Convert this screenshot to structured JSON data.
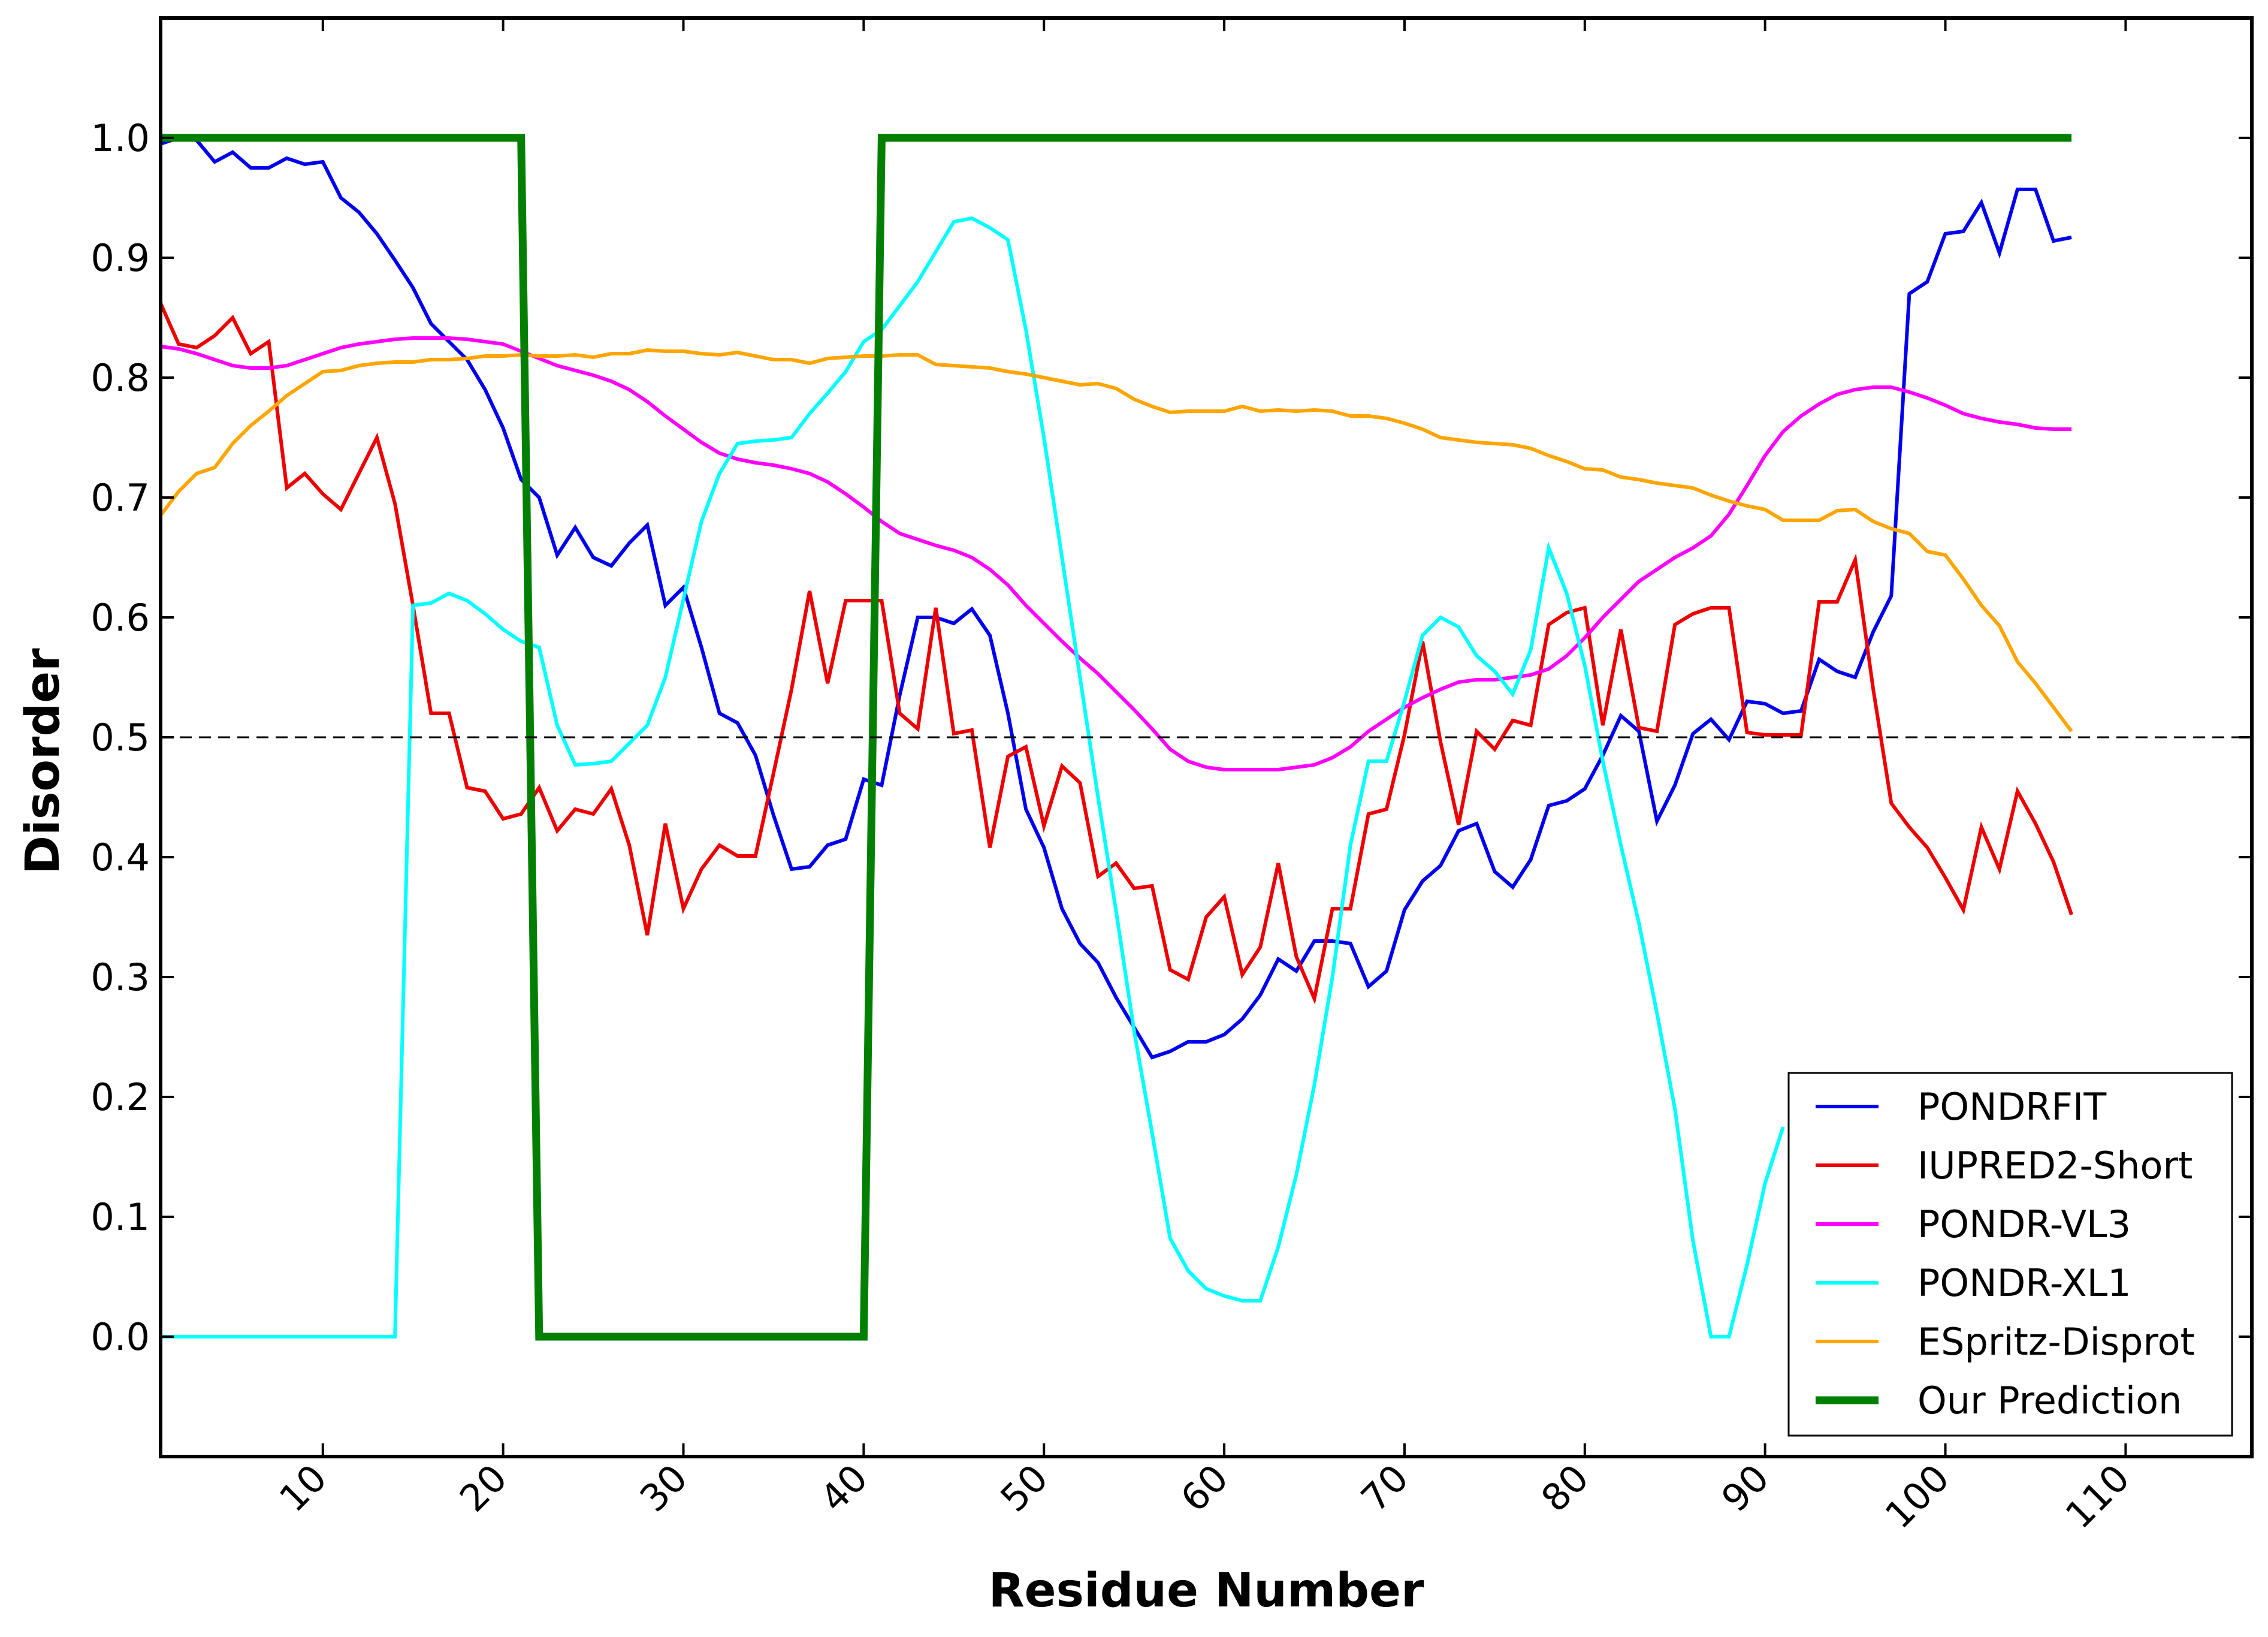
{
  "chart_data": {
    "type": "line",
    "title": "",
    "xlabel": "Residue Number",
    "ylabel": "Disorder",
    "xlim": [
      1,
      117
    ],
    "ylim": [
      -0.1,
      1.1
    ],
    "xticks": [
      10,
      20,
      30,
      40,
      50,
      60,
      70,
      80,
      90,
      100,
      110
    ],
    "yticks": [
      0.0,
      0.1,
      0.2,
      0.3,
      0.4,
      0.5,
      0.6,
      0.7,
      0.8,
      0.9,
      1.0
    ],
    "ytick_labels": [
      "0.0",
      "0.1",
      "0.2",
      "0.3",
      "0.4",
      "0.5",
      "0.6",
      "0.7",
      "0.8",
      "0.9",
      "1.0"
    ],
    "xtick_labels": [
      "10",
      "20",
      "30",
      "40",
      "50",
      "60",
      "70",
      "80",
      "90",
      "100",
      "110"
    ],
    "grid": false,
    "legend_position": "bottom-right",
    "reference_line": {
      "y": 0.5,
      "style": "dashed",
      "color": "#000000"
    },
    "series": [
      {
        "name": "PONDRFIT",
        "color": "#0000ee",
        "width": "thin",
        "x": [
          1,
          2,
          3,
          4,
          5,
          6,
          7,
          8,
          9,
          10,
          11,
          12,
          13,
          14,
          15,
          16,
          17,
          18,
          19,
          20,
          21,
          22,
          23,
          24,
          25,
          26,
          27,
          28,
          29,
          30,
          31,
          32,
          33,
          34,
          35,
          36,
          37,
          38,
          39,
          40,
          41,
          42,
          43,
          44,
          45,
          46,
          47,
          48,
          49,
          50,
          51,
          52,
          53,
          54,
          55,
          56,
          57,
          58,
          59,
          60,
          61,
          62,
          63,
          64,
          65,
          66,
          67,
          68,
          69,
          70,
          71,
          72,
          73,
          74,
          75,
          76,
          77,
          78,
          79,
          80,
          81,
          82,
          83,
          84,
          85,
          86,
          87,
          88,
          89,
          90,
          91,
          92,
          93,
          94,
          95,
          96,
          97,
          98,
          99,
          100,
          101,
          102,
          103,
          104,
          105,
          106,
          107
        ],
        "values": [
          0.995,
          1.0,
          0.998,
          0.98,
          0.988,
          0.975,
          0.975,
          0.983,
          0.978,
          0.98,
          0.95,
          0.938,
          0.92,
          0.898,
          0.875,
          0.845,
          0.83,
          0.815,
          0.79,
          0.758,
          0.715,
          0.7,
          0.652,
          0.675,
          0.65,
          0.643,
          0.662,
          0.677,
          0.61,
          0.625,
          0.575,
          0.52,
          0.512,
          0.485,
          0.435,
          0.39,
          0.392,
          0.41,
          0.415,
          0.465,
          0.46,
          0.535,
          0.6,
          0.6,
          0.595,
          0.607,
          0.585,
          0.52,
          0.44,
          0.408,
          0.357,
          0.328,
          0.312,
          0.283,
          0.258,
          0.233,
          0.238,
          0.246,
          0.246,
          0.252,
          0.265,
          0.285,
          0.315,
          0.305,
          0.33,
          0.33,
          0.328,
          0.292,
          0.305,
          0.356,
          0.38,
          0.393,
          0.422,
          0.428,
          0.388,
          0.375,
          0.398,
          0.443,
          0.447,
          0.457,
          0.485,
          0.518,
          0.505,
          0.43,
          0.46,
          0.503,
          0.515,
          0.498,
          0.53,
          0.528,
          0.52,
          0.522,
          0.565,
          0.555,
          0.55,
          0.588,
          0.618,
          0.87,
          0.88,
          0.92,
          0.922,
          0.946,
          0.904,
          0.957,
          0.957,
          0.914,
          0.917
        ]
      },
      {
        "name": "IUPRED2-Short",
        "color": "#ee0000",
        "width": "thin",
        "x": [
          1,
          2,
          3,
          4,
          5,
          6,
          7,
          8,
          9,
          10,
          11,
          12,
          13,
          14,
          15,
          16,
          17,
          18,
          19,
          20,
          21,
          22,
          23,
          24,
          25,
          26,
          27,
          28,
          29,
          30,
          31,
          32,
          33,
          34,
          35,
          36,
          37,
          38,
          39,
          40,
          41,
          42,
          43,
          44,
          45,
          46,
          47,
          48,
          49,
          50,
          51,
          52,
          53,
          54,
          55,
          56,
          57,
          58,
          59,
          60,
          61,
          62,
          63,
          64,
          65,
          66,
          67,
          68,
          69,
          70,
          71,
          72,
          73,
          74,
          75,
          76,
          77,
          78,
          79,
          80,
          81,
          82,
          83,
          84,
          85,
          86,
          87,
          88,
          89,
          90,
          91,
          92,
          93,
          94,
          95,
          96,
          97,
          98,
          99,
          100,
          101,
          102,
          103,
          104,
          105,
          106,
          107
        ],
        "values": [
          0.862,
          0.828,
          0.825,
          0.835,
          0.85,
          0.82,
          0.83,
          0.708,
          0.72,
          0.703,
          0.69,
          0.72,
          0.75,
          0.695,
          0.61,
          0.52,
          0.52,
          0.458,
          0.455,
          0.432,
          0.436,
          0.458,
          0.422,
          0.44,
          0.436,
          0.457,
          0.41,
          0.335,
          0.428,
          0.357,
          0.39,
          0.41,
          0.401,
          0.401,
          0.47,
          0.54,
          0.622,
          0.545,
          0.614,
          0.614,
          0.614,
          0.52,
          0.507,
          0.608,
          0.503,
          0.506,
          0.408,
          0.484,
          0.492,
          0.426,
          0.476,
          0.462,
          0.384,
          0.395,
          0.374,
          0.376,
          0.306,
          0.298,
          0.35,
          0.367,
          0.302,
          0.325,
          0.395,
          0.317,
          0.282,
          0.357,
          0.357,
          0.436,
          0.44,
          0.502,
          0.58,
          0.496,
          0.427,
          0.505,
          0.49,
          0.514,
          0.51,
          0.594,
          0.604,
          0.608,
          0.51,
          0.59,
          0.508,
          0.505,
          0.594,
          0.603,
          0.608,
          0.608,
          0.504,
          0.502,
          0.502,
          0.502,
          0.613,
          0.613,
          0.648,
          0.54,
          0.445,
          0.425,
          0.408,
          0.383,
          0.356,
          0.425,
          0.39,
          0.455,
          0.428,
          0.396,
          0.352
        ]
      },
      {
        "name": "PONDR-VL3",
        "color": "#ff00ff",
        "width": "thin",
        "x": [
          1,
          2,
          3,
          4,
          5,
          6,
          7,
          8,
          9,
          10,
          11,
          12,
          13,
          14,
          15,
          16,
          17,
          18,
          19,
          20,
          21,
          22,
          23,
          24,
          25,
          26,
          27,
          28,
          29,
          30,
          31,
          32,
          33,
          34,
          35,
          36,
          37,
          38,
          39,
          40,
          41,
          42,
          43,
          44,
          45,
          46,
          47,
          48,
          49,
          50,
          51,
          52,
          53,
          54,
          55,
          56,
          57,
          58,
          59,
          60,
          61,
          62,
          63,
          64,
          65,
          66,
          67,
          68,
          69,
          70,
          71,
          72,
          73,
          74,
          75,
          76,
          77,
          78,
          79,
          80,
          81,
          82,
          83,
          84,
          85,
          86,
          87,
          88,
          89,
          90,
          91,
          92,
          93,
          94,
          95,
          96,
          97,
          98,
          99,
          100,
          101,
          102,
          103,
          104,
          105,
          106,
          107
        ],
        "values": [
          0.826,
          0.824,
          0.82,
          0.815,
          0.81,
          0.808,
          0.808,
          0.81,
          0.815,
          0.82,
          0.825,
          0.828,
          0.83,
          0.832,
          0.833,
          0.833,
          0.833,
          0.832,
          0.83,
          0.828,
          0.822,
          0.816,
          0.81,
          0.806,
          0.802,
          0.797,
          0.79,
          0.78,
          0.768,
          0.757,
          0.746,
          0.737,
          0.732,
          0.729,
          0.727,
          0.724,
          0.72,
          0.713,
          0.703,
          0.692,
          0.68,
          0.67,
          0.665,
          0.66,
          0.656,
          0.65,
          0.64,
          0.627,
          0.61,
          0.595,
          0.58,
          0.566,
          0.553,
          0.538,
          0.523,
          0.507,
          0.49,
          0.48,
          0.475,
          0.473,
          0.473,
          0.473,
          0.473,
          0.475,
          0.477,
          0.483,
          0.492,
          0.505,
          0.515,
          0.525,
          0.533,
          0.54,
          0.546,
          0.548,
          0.548,
          0.55,
          0.552,
          0.557,
          0.568,
          0.583,
          0.6,
          0.615,
          0.63,
          0.64,
          0.65,
          0.658,
          0.668,
          0.686,
          0.71,
          0.735,
          0.755,
          0.768,
          0.778,
          0.786,
          0.79,
          0.792,
          0.792,
          0.788,
          0.783,
          0.777,
          0.77,
          0.766,
          0.763,
          0.761,
          0.758,
          0.757,
          0.757
        ]
      },
      {
        "name": "PONDR-XL1",
        "color": "#00ffff",
        "width": "thin",
        "x": [
          1,
          2,
          3,
          4,
          5,
          6,
          7,
          8,
          9,
          10,
          11,
          12,
          13,
          14,
          15,
          16,
          17,
          18,
          19,
          20,
          21,
          22,
          23,
          24,
          25,
          26,
          27,
          28,
          29,
          30,
          31,
          32,
          33,
          34,
          35,
          36,
          37,
          38,
          39,
          40,
          41,
          42,
          43,
          44,
          45,
          46,
          47,
          48,
          49,
          50,
          51,
          52,
          53,
          54,
          55,
          56,
          57,
          58,
          59,
          60,
          61,
          62,
          63,
          64,
          65,
          66,
          67,
          68,
          69,
          70,
          71,
          72,
          73,
          74,
          75,
          76,
          77,
          78,
          79,
          80,
          81,
          82,
          83,
          84,
          85,
          86,
          87,
          88,
          89,
          90,
          91
        ],
        "values": [
          0.0,
          0.0,
          0.0,
          0.0,
          0.0,
          0.0,
          0.0,
          0.0,
          0.0,
          0.0,
          0.0,
          0.0,
          0.0,
          0.0,
          0.61,
          0.612,
          0.62,
          0.614,
          0.603,
          0.59,
          0.58,
          0.575,
          0.51,
          0.477,
          0.478,
          0.48,
          0.495,
          0.51,
          0.55,
          0.615,
          0.68,
          0.72,
          0.745,
          0.747,
          0.748,
          0.75,
          0.77,
          0.787,
          0.805,
          0.83,
          0.84,
          0.86,
          0.88,
          0.905,
          0.93,
          0.933,
          0.925,
          0.915,
          0.84,
          0.75,
          0.65,
          0.55,
          0.45,
          0.355,
          0.255,
          0.17,
          0.082,
          0.055,
          0.04,
          0.034,
          0.03,
          0.03,
          0.075,
          0.135,
          0.21,
          0.3,
          0.41,
          0.48,
          0.48,
          0.53,
          0.585,
          0.6,
          0.592,
          0.568,
          0.555,
          0.536,
          0.573,
          0.658,
          0.62,
          0.56,
          0.48,
          0.41,
          0.345,
          0.27,
          0.19,
          0.08,
          0.0,
          0.0,
          0.06,
          0.128,
          0.175
        ]
      },
      {
        "name": "ESpritz-Disprot",
        "color": "#ffa500",
        "width": "thin",
        "x": [
          1,
          2,
          3,
          4,
          5,
          6,
          7,
          8,
          9,
          10,
          11,
          12,
          13,
          14,
          15,
          16,
          17,
          18,
          19,
          20,
          21,
          22,
          23,
          24,
          25,
          26,
          27,
          28,
          29,
          30,
          31,
          32,
          33,
          34,
          35,
          36,
          37,
          38,
          39,
          40,
          41,
          42,
          43,
          44,
          45,
          46,
          47,
          48,
          49,
          50,
          51,
          52,
          53,
          54,
          55,
          56,
          57,
          58,
          59,
          60,
          61,
          62,
          63,
          64,
          65,
          66,
          67,
          68,
          69,
          70,
          71,
          72,
          73,
          74,
          75,
          76,
          77,
          78,
          79,
          80,
          81,
          82,
          83,
          84,
          85,
          86,
          87,
          88,
          89,
          90,
          91,
          92,
          93,
          94,
          95,
          96,
          97,
          98,
          99,
          100,
          101,
          102,
          103,
          104,
          105,
          106,
          107
        ],
        "values": [
          0.685,
          0.705,
          0.72,
          0.725,
          0.745,
          0.76,
          0.772,
          0.785,
          0.795,
          0.805,
          0.806,
          0.81,
          0.812,
          0.813,
          0.813,
          0.815,
          0.815,
          0.816,
          0.818,
          0.818,
          0.819,
          0.818,
          0.818,
          0.819,
          0.817,
          0.82,
          0.82,
          0.823,
          0.822,
          0.822,
          0.82,
          0.819,
          0.821,
          0.818,
          0.815,
          0.815,
          0.812,
          0.816,
          0.817,
          0.818,
          0.818,
          0.819,
          0.819,
          0.811,
          0.81,
          0.809,
          0.808,
          0.805,
          0.803,
          0.8,
          0.797,
          0.794,
          0.795,
          0.791,
          0.782,
          0.776,
          0.771,
          0.772,
          0.772,
          0.772,
          0.776,
          0.772,
          0.773,
          0.772,
          0.773,
          0.772,
          0.768,
          0.768,
          0.766,
          0.762,
          0.757,
          0.75,
          0.748,
          0.746,
          0.745,
          0.744,
          0.741,
          0.735,
          0.73,
          0.724,
          0.723,
          0.717,
          0.715,
          0.712,
          0.71,
          0.708,
          0.702,
          0.697,
          0.693,
          0.69,
          0.681,
          0.681,
          0.681,
          0.689,
          0.69,
          0.68,
          0.674,
          0.67,
          0.655,
          0.652,
          0.632,
          0.61,
          0.593,
          0.563,
          0.545,
          0.525,
          0.505
        ]
      },
      {
        "name": "Our Prediction",
        "color": "#007f00",
        "width": "thick",
        "x": [
          1,
          21,
          22,
          40,
          41,
          107
        ],
        "values": [
          1.0,
          1.0,
          0.0,
          0.0,
          1.0,
          1.0
        ]
      }
    ]
  }
}
